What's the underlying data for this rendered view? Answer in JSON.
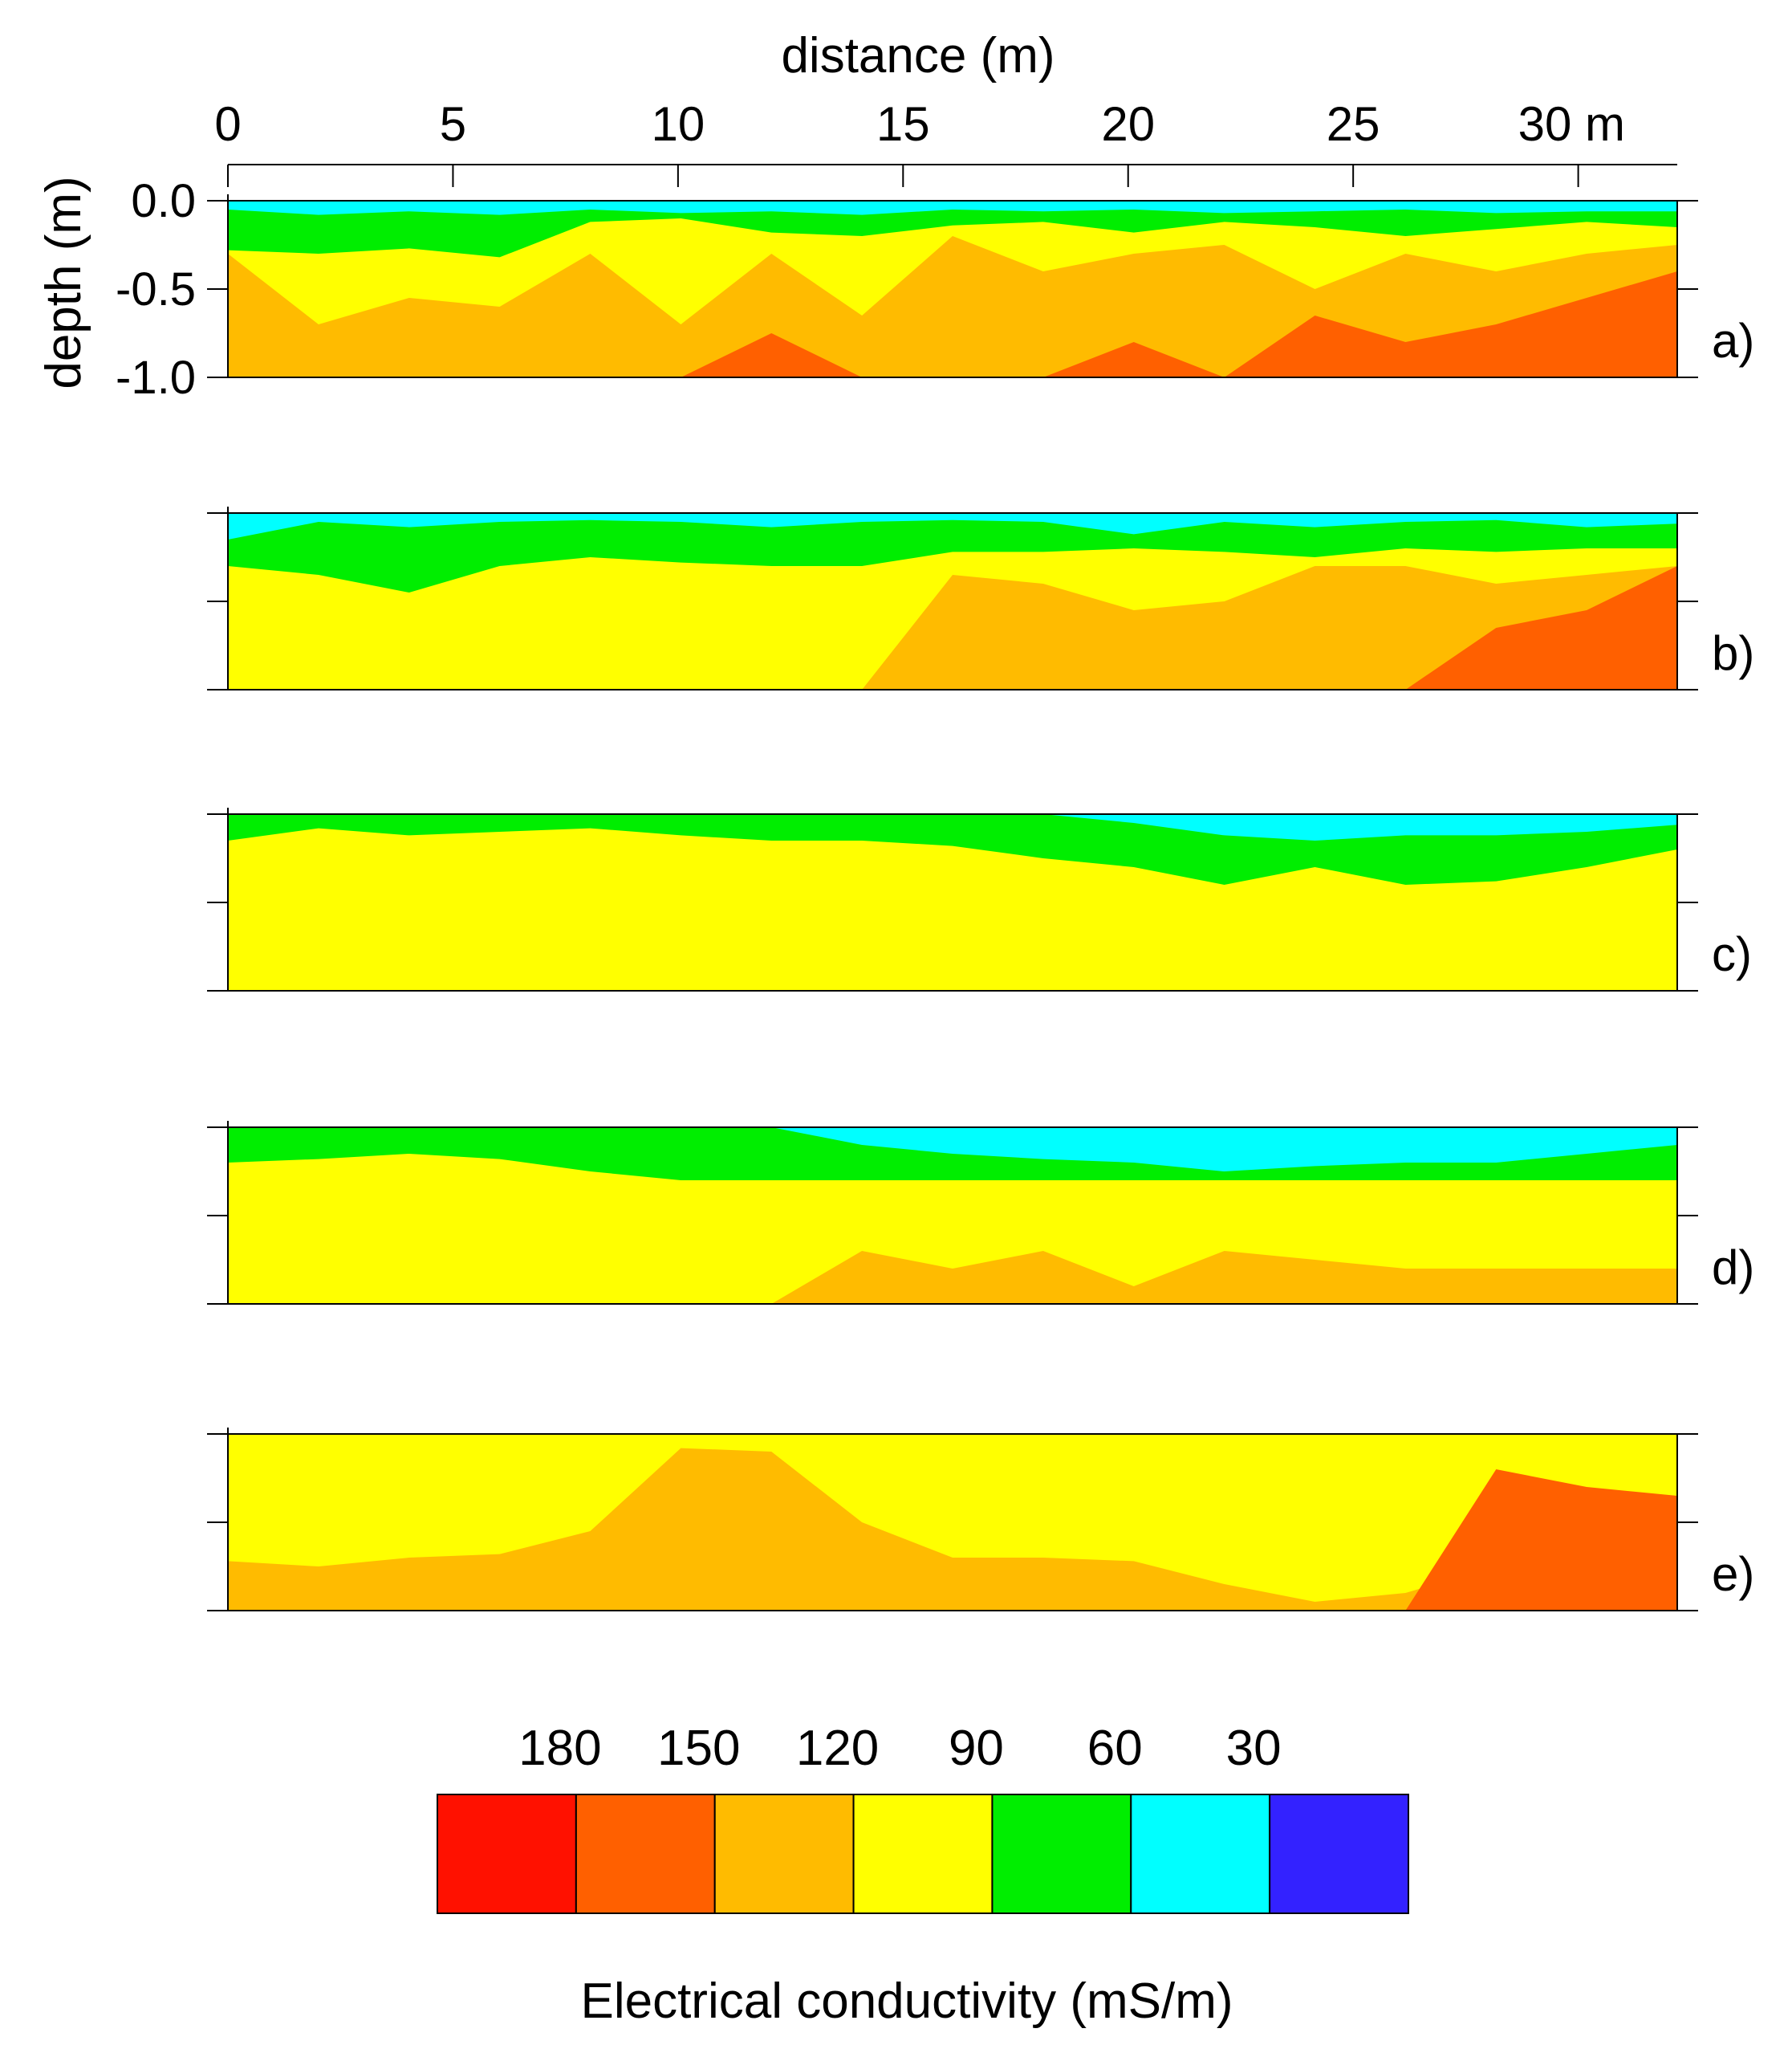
{
  "chart_data": {
    "type": "heatmap",
    "xlabel": "distance (m)",
    "ylabel": "depth (m)",
    "x_ticks": [
      "0",
      "5",
      "10",
      "15",
      "20",
      "25",
      "30 m"
    ],
    "x_tick_values": [
      0,
      5,
      10,
      15,
      20,
      25,
      30
    ],
    "y_ticks": [
      "0.0",
      "-0.5",
      "-1.0"
    ],
    "y_tick_values": [
      0.0,
      -0.5,
      -1.0
    ],
    "xlim": [
      0,
      32.2
    ],
    "ylim": [
      -1.0,
      0.0
    ],
    "legend": {
      "title": "Electrical conductivity (mS/m)",
      "labels": [
        "180",
        "150",
        "120",
        "90",
        "60",
        "30"
      ],
      "colors": [
        "#ff1100",
        "#ff6000",
        "#ffbb00",
        "#ffff00",
        "#00ee00",
        "#00ffff",
        "#3322ff"
      ]
    },
    "panels": [
      {
        "label": "a)",
        "layers": [
          {
            "color": "#3322ff",
            "base": [
              0.0,
              0.0,
              0.0,
              0.0,
              0.0,
              0.0,
              0.0,
              0.0,
              0.0,
              0.0,
              0.0,
              0.0,
              0.0,
              0.0,
              0.0,
              0.0,
              0.0
            ]
          },
          {
            "color": "#00ffff",
            "base": [
              -0.05,
              -0.08,
              -0.06,
              -0.08,
              -0.05,
              -0.07,
              -0.06,
              -0.08,
              -0.05,
              -0.06,
              -0.05,
              -0.07,
              -0.06,
              -0.05,
              -0.07,
              -0.06,
              -0.06
            ]
          },
          {
            "color": "#00ee00",
            "base": [
              -0.28,
              -0.3,
              -0.27,
              -0.32,
              -0.12,
              -0.1,
              -0.18,
              -0.2,
              -0.14,
              -0.12,
              -0.18,
              -0.12,
              -0.15,
              -0.2,
              -0.16,
              -0.12,
              -0.15
            ]
          },
          {
            "color": "#ffff00",
            "base": [
              -0.3,
              -0.7,
              -0.55,
              -0.6,
              -0.3,
              -0.7,
              -0.3,
              -0.65,
              -0.2,
              -0.4,
              -0.3,
              -0.25,
              -0.5,
              -0.3,
              -0.4,
              -0.3,
              -0.25
            ]
          },
          {
            "color": "#ffbb00",
            "base": [
              -1.0,
              -1.0,
              -1.0,
              -1.0,
              -1.0,
              -1.0,
              -0.75,
              -1.0,
              -1.0,
              -1.0,
              -0.8,
              -1.0,
              -0.65,
              -0.8,
              -0.7,
              -0.55,
              -0.4
            ]
          },
          {
            "color": "#ff6000",
            "base": [
              -1.0,
              -1.0,
              -1.0,
              -1.0,
              -1.0,
              -1.0,
              -1.0,
              -1.0,
              -1.0,
              -1.0,
              -1.0,
              -1.0,
              -1.0,
              -1.0,
              -0.9,
              -0.65,
              -0.3
            ]
          }
        ]
      },
      {
        "label": "b)",
        "layers": [
          {
            "color": "#3322ff",
            "base": [
              0.0,
              0.0,
              0.0,
              0.0,
              0.0,
              0.0,
              0.0,
              0.0,
              0.0,
              0.0,
              0.0,
              0.0,
              0.0,
              0.0,
              0.0,
              0.0,
              0.0
            ]
          },
          {
            "color": "#00ffff",
            "base": [
              -0.15,
              -0.05,
              -0.08,
              -0.05,
              -0.04,
              -0.05,
              -0.08,
              -0.05,
              -0.04,
              -0.05,
              -0.12,
              -0.05,
              -0.08,
              -0.05,
              -0.04,
              -0.08,
              -0.06
            ]
          },
          {
            "color": "#00ee00",
            "base": [
              -0.3,
              -0.35,
              -0.45,
              -0.3,
              -0.25,
              -0.28,
              -0.3,
              -0.3,
              -0.22,
              -0.22,
              -0.2,
              -0.22,
              -0.25,
              -0.2,
              -0.22,
              -0.2,
              -0.2
            ]
          },
          {
            "color": "#ffff00",
            "base": [
              -1.0,
              -1.0,
              -1.0,
              -1.0,
              -1.0,
              -1.0,
              -1.0,
              -1.0,
              -0.35,
              -0.4,
              -0.55,
              -0.5,
              -0.3,
              -0.3,
              -0.4,
              -0.35,
              -0.3
            ]
          },
          {
            "color": "#ffbb00",
            "base": [
              -1.0,
              -1.0,
              -1.0,
              -1.0,
              -1.0,
              -1.0,
              -1.0,
              -1.0,
              -1.0,
              -1.0,
              -1.0,
              -1.0,
              -1.0,
              -1.0,
              -0.65,
              -0.55,
              -0.3
            ]
          },
          {
            "color": "#ff6000",
            "base": [
              -1.0,
              -1.0,
              -1.0,
              -1.0,
              -1.0,
              -1.0,
              -1.0,
              -1.0,
              -1.0,
              -1.0,
              -1.0,
              -1.0,
              -1.0,
              -1.0,
              -1.0,
              -1.0,
              -1.0
            ]
          }
        ]
      },
      {
        "label": "c)",
        "layers": [
          {
            "color": "#3322ff",
            "base": [
              0.0,
              0.0,
              0.0,
              0.0,
              0.0,
              0.0,
              0.0,
              0.0,
              0.0,
              0.0,
              0.0,
              0.0,
              0.0,
              0.0,
              0.0,
              0.0,
              0.0
            ]
          },
          {
            "color": "#00ffff",
            "base": [
              0.0,
              0.0,
              0.0,
              0.0,
              0.0,
              0.0,
              0.0,
              0.0,
              0.0,
              0.0,
              -0.05,
              -0.12,
              -0.15,
              -0.12,
              -0.12,
              -0.1,
              -0.06
            ]
          },
          {
            "color": "#00ee00",
            "base": [
              -0.15,
              -0.08,
              -0.12,
              -0.1,
              -0.08,
              -0.12,
              -0.15,
              -0.15,
              -0.18,
              -0.25,
              -0.3,
              -0.4,
              -0.3,
              -0.4,
              -0.38,
              -0.3,
              -0.2
            ]
          },
          {
            "color": "#ffff00",
            "base": [
              -1.0,
              -1.0,
              -1.0,
              -1.0,
              -1.0,
              -1.0,
              -1.0,
              -1.0,
              -1.0,
              -1.0,
              -1.0,
              -1.0,
              -1.0,
              -1.0,
              -1.0,
              -1.0,
              -1.0
            ]
          },
          {
            "color": "#ffbb00",
            "base": [
              -1.0,
              -1.0,
              -1.0,
              -1.0,
              -1.0,
              -1.0,
              -1.0,
              -1.0,
              -1.0,
              -1.0,
              -1.0,
              -1.0,
              -1.0,
              -1.0,
              -1.0,
              -1.0,
              -1.0
            ]
          },
          {
            "color": "#ff6000",
            "base": [
              -1.0,
              -1.0,
              -1.0,
              -1.0,
              -1.0,
              -1.0,
              -1.0,
              -1.0,
              -1.0,
              -1.0,
              -1.0,
              -1.0,
              -1.0,
              -1.0,
              -1.0,
              -1.0,
              -1.0
            ]
          }
        ]
      },
      {
        "label": "d)",
        "layers": [
          {
            "color": "#3322ff",
            "base": [
              0.0,
              0.0,
              0.0,
              0.0,
              0.0,
              0.0,
              0.0,
              0.0,
              0.0,
              0.0,
              0.0,
              0.0,
              0.0,
              0.0,
              0.0,
              0.0,
              0.0
            ]
          },
          {
            "color": "#00ffff",
            "base": [
              0.0,
              0.0,
              0.0,
              0.0,
              0.0,
              0.0,
              0.0,
              -0.1,
              -0.15,
              -0.18,
              -0.2,
              -0.25,
              -0.22,
              -0.2,
              -0.2,
              -0.15,
              -0.1
            ]
          },
          {
            "color": "#00ee00",
            "base": [
              -0.2,
              -0.18,
              -0.15,
              -0.18,
              -0.25,
              -0.3,
              -0.3,
              -0.3,
              -0.3,
              -0.3,
              -0.3,
              -0.3,
              -0.3,
              -0.3,
              -0.3,
              -0.3,
              -0.3
            ]
          },
          {
            "color": "#ffff00",
            "base": [
              -1.0,
              -1.0,
              -1.0,
              -1.0,
              -1.0,
              -1.0,
              -1.0,
              -0.7,
              -0.8,
              -0.7,
              -0.9,
              -0.7,
              -0.75,
              -0.8,
              -0.8,
              -0.8,
              -0.8
            ]
          },
          {
            "color": "#ffbb00",
            "base": [
              -1.0,
              -1.0,
              -1.0,
              -1.0,
              -1.0,
              -1.0,
              -1.0,
              -1.0,
              -1.0,
              -1.0,
              -1.0,
              -1.0,
              -1.0,
              -1.0,
              -1.0,
              -1.0,
              -1.0
            ]
          },
          {
            "color": "#ff6000",
            "base": [
              -1.0,
              -1.0,
              -1.0,
              -1.0,
              -1.0,
              -1.0,
              -1.0,
              -1.0,
              -1.0,
              -1.0,
              -1.0,
              -1.0,
              -1.0,
              -1.0,
              -1.0,
              -1.0,
              -1.0
            ]
          }
        ]
      },
      {
        "label": "e)",
        "layers": [
          {
            "color": "#3322ff",
            "base": [
              0.0,
              0.0,
              0.0,
              0.0,
              0.0,
              0.0,
              0.0,
              0.0,
              0.0,
              0.0,
              0.0,
              0.0,
              0.0,
              0.0,
              0.0,
              0.0,
              0.0
            ]
          },
          {
            "color": "#00ffff",
            "base": [
              0.0,
              0.0,
              0.0,
              0.0,
              0.0,
              0.0,
              0.0,
              0.0,
              0.0,
              0.0,
              0.0,
              0.0,
              0.0,
              0.0,
              0.0,
              0.0,
              0.0
            ]
          },
          {
            "color": "#00ee00",
            "base": [
              0.0,
              0.0,
              0.0,
              0.0,
              0.0,
              0.0,
              0.0,
              0.0,
              0.0,
              0.0,
              0.0,
              0.0,
              0.0,
              0.0,
              0.0,
              0.0,
              0.0
            ]
          },
          {
            "color": "#ffff00",
            "base": [
              -0.72,
              -0.75,
              -0.7,
              -0.68,
              -0.55,
              -0.08,
              -0.1,
              -0.5,
              -0.7,
              -0.7,
              -0.72,
              -0.85,
              -0.95,
              -0.9,
              -0.75,
              -0.72,
              -0.7
            ]
          },
          {
            "color": "#ffbb00",
            "base": [
              -1.0,
              -1.0,
              -1.0,
              -1.0,
              -1.0,
              -1.0,
              -1.0,
              -1.0,
              -1.0,
              -1.0,
              -1.0,
              -1.0,
              -1.0,
              -1.0,
              -0.2,
              -0.3,
              -0.35
            ]
          },
          {
            "color": "#ff6000",
            "base": [
              -1.0,
              -1.0,
              -1.0,
              -1.0,
              -1.0,
              -1.0,
              -1.0,
              -1.0,
              -1.0,
              -1.0,
              -1.0,
              -1.0,
              -1.0,
              -1.0,
              -1.0,
              -1.0,
              -1.0
            ]
          }
        ]
      }
    ]
  }
}
